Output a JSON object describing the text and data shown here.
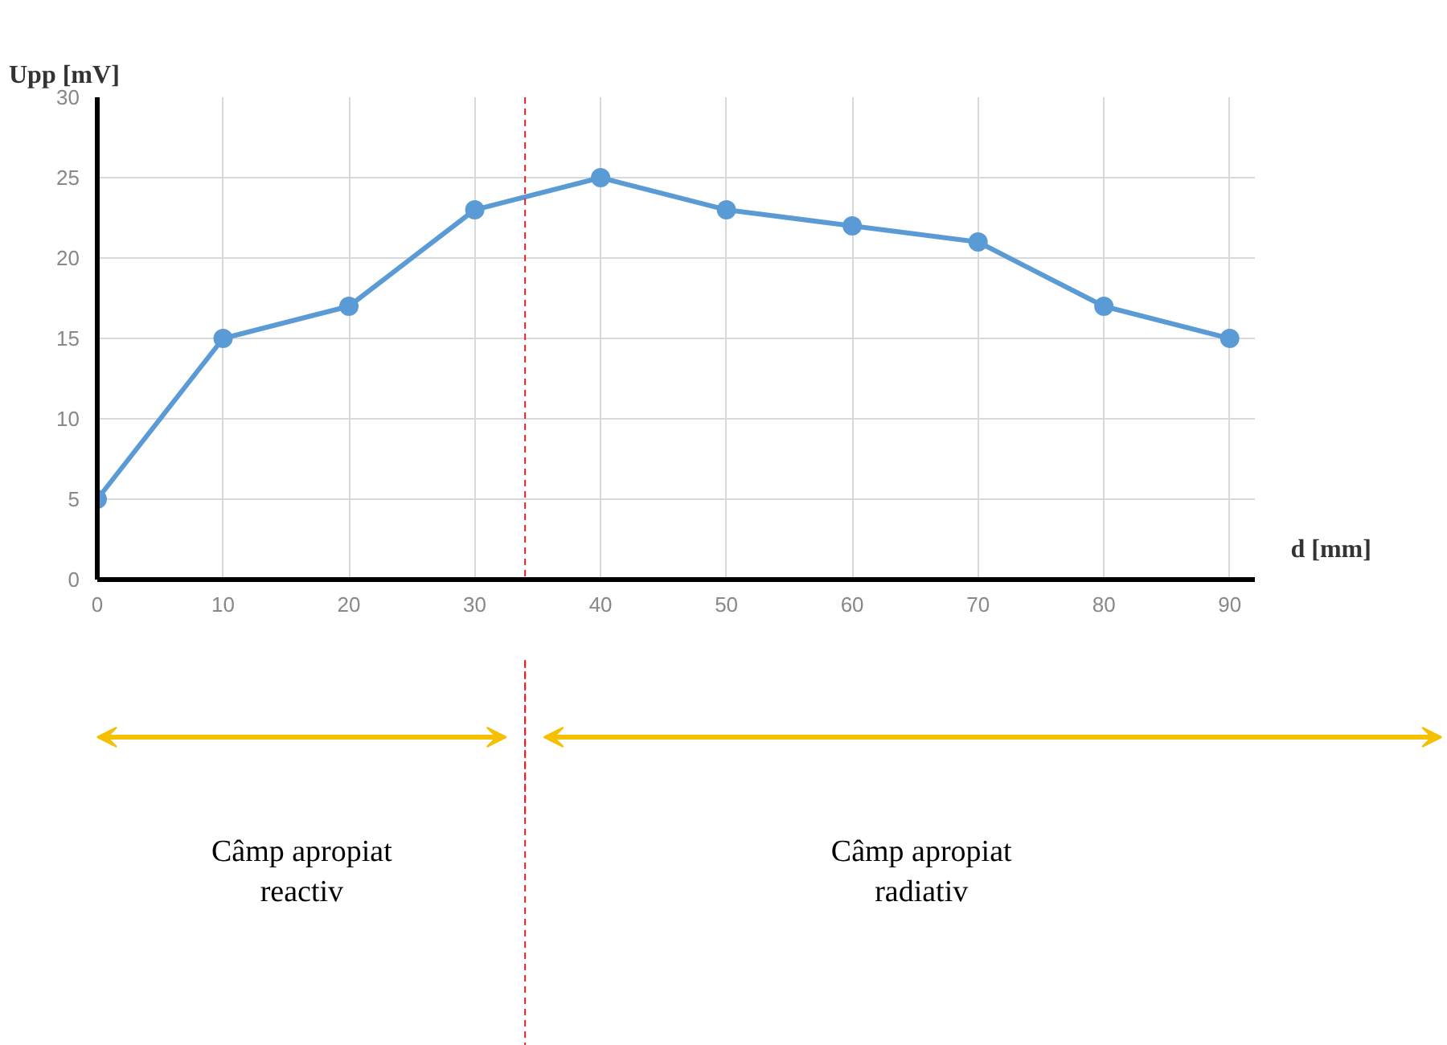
{
  "chart_data": {
    "type": "line",
    "xlabel": "d [mm]",
    "ylabel": "Upp [mV]",
    "x": [
      0,
      10,
      20,
      30,
      40,
      50,
      60,
      70,
      80,
      90
    ],
    "series": [
      {
        "color": "#5b9bd5",
        "values": [
          5,
          15,
          17,
          23,
          25,
          23,
          22,
          21,
          17,
          15
        ]
      }
    ],
    "xlim": [
      0,
      92
    ],
    "ylim": [
      0,
      30
    ],
    "xticks": [
      0,
      10,
      20,
      30,
      40,
      50,
      60,
      70,
      80,
      90
    ],
    "yticks": [
      0,
      5,
      10,
      15,
      20,
      25,
      30
    ],
    "grid": true,
    "marker": "circle",
    "line_style": "solid",
    "ref_lines": [
      {
        "axis": "x",
        "value": 34,
        "color": "#e0202a",
        "line_style": "dashed"
      }
    ],
    "annotations": [
      "Câmp apropiat\nreactiv",
      "Câmp apropiat\nradiativ"
    ]
  }
}
